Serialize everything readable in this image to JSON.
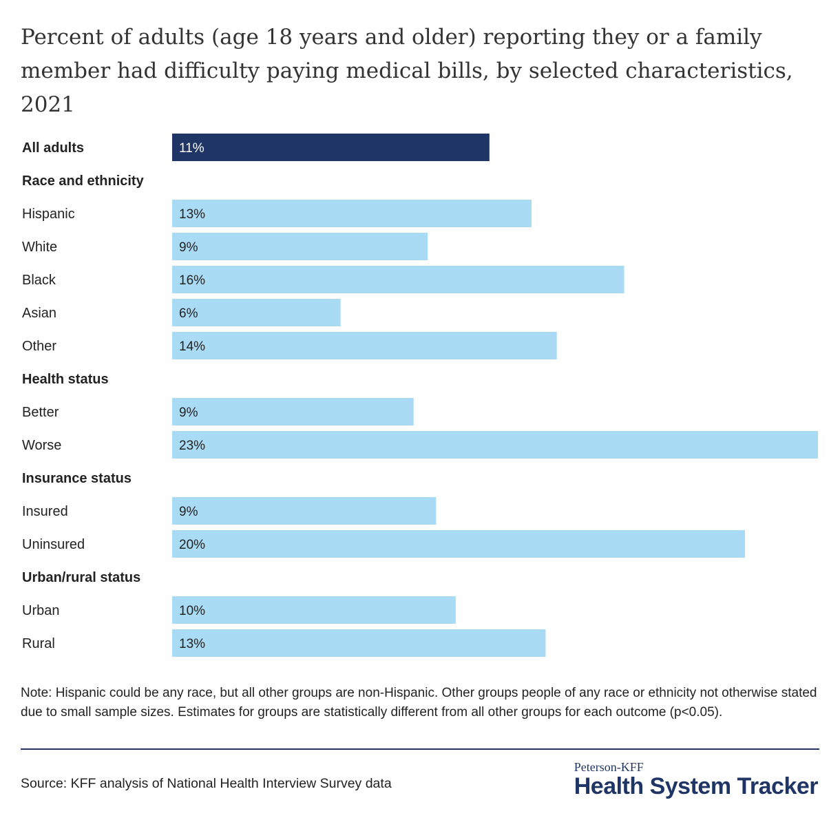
{
  "header": {
    "title": "Percent of adults (age 18 years and older) reporting they or a family member had difficulty paying medical bills, by selected characteristics, 2021"
  },
  "colors": {
    "highlight": "#1f3566",
    "bar": "#a9dbf5",
    "text": "#222222"
  },
  "chart_data": {
    "type": "bar",
    "orientation": "horizontal",
    "title": "Percent of adults (age 18 years and older) reporting they or a family member had difficulty paying medical bills, by selected characteristics, 2021",
    "xlabel": "",
    "ylabel": "",
    "xlim": [
      0,
      23
    ],
    "grid": false,
    "rows": [
      {
        "label": "All adults",
        "value": 11.3,
        "display": "11%",
        "kind": "total"
      },
      {
        "label": "Race and ethnicity",
        "kind": "group"
      },
      {
        "label": "Hispanic",
        "value": 12.8,
        "display": "13%",
        "kind": "bar"
      },
      {
        "label": "White",
        "value": 9.1,
        "display": "9%",
        "kind": "bar"
      },
      {
        "label": "Black",
        "value": 16.1,
        "display": "16%",
        "kind": "bar"
      },
      {
        "label": "Asian",
        "value": 6.0,
        "display": "6%",
        "kind": "bar"
      },
      {
        "label": "Other",
        "value": 13.7,
        "display": "14%",
        "kind": "bar"
      },
      {
        "label": "Health status",
        "kind": "group"
      },
      {
        "label": "Better",
        "value": 8.6,
        "display": "9%",
        "kind": "bar"
      },
      {
        "label": "Worse",
        "value": 23.0,
        "display": "23%",
        "kind": "bar"
      },
      {
        "label": "Insurance status",
        "kind": "group"
      },
      {
        "label": "Insured",
        "value": 9.4,
        "display": "9%",
        "kind": "bar"
      },
      {
        "label": "Uninsured",
        "value": 20.4,
        "display": "20%",
        "kind": "bar"
      },
      {
        "label": "Urban/rural status",
        "kind": "group"
      },
      {
        "label": "Urban",
        "value": 10.1,
        "display": "10%",
        "kind": "bar"
      },
      {
        "label": "Rural",
        "value": 13.3,
        "display": "13%",
        "kind": "bar"
      }
    ]
  },
  "footer": {
    "note": "Note: Hispanic could be any race, but all other groups are non-Hispanic. Other groups people of any race or ethnicity not otherwise stated due to small sample sizes. Estimates for groups are statistically different from all other groups for each outcome (p<0.05).",
    "source": "Source: KFF analysis of National Health Interview Survey data",
    "brand_top": "Peterson-KFF",
    "brand_main": "Health System Tracker"
  }
}
